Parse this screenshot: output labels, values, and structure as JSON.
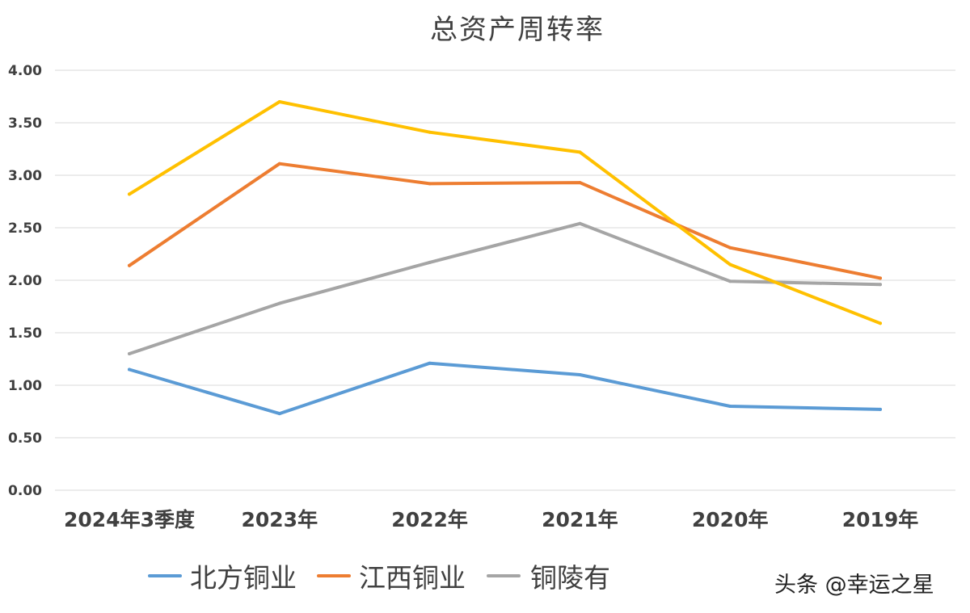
{
  "chart_data": {
    "type": "line",
    "title": "总资产周转率",
    "categories": [
      "2024年3季度",
      "2023年",
      "2022年",
      "2021年",
      "2020年",
      "2019年"
    ],
    "yticks": [
      "0.00",
      "0.50",
      "1.00",
      "1.50",
      "2.00",
      "2.50",
      "3.00",
      "3.50",
      "4.00"
    ],
    "ylim": [
      0,
      4
    ],
    "grid": true,
    "legend_position": "bottom",
    "series": [
      {
        "name": "北方铜业",
        "color": "#5b9bd5",
        "values": [
          1.15,
          0.73,
          1.21,
          1.1,
          0.8,
          0.77
        ]
      },
      {
        "name": "江西铜业",
        "color": "#ed7d31",
        "values": [
          2.14,
          3.11,
          2.92,
          2.93,
          2.31,
          2.02
        ]
      },
      {
        "name": "铜陵有色",
        "color": "#a5a5a5",
        "values": [
          1.3,
          1.78,
          2.17,
          2.54,
          1.99,
          1.96
        ]
      },
      {
        "name": "",
        "color": "#ffc000",
        "values": [
          2.82,
          3.7,
          3.41,
          3.22,
          2.15,
          1.59
        ]
      }
    ]
  },
  "legend_labels": [
    "北方铜业",
    "江西铜业",
    "铜陵有"
  ],
  "watermark": "头条 @幸运之星"
}
